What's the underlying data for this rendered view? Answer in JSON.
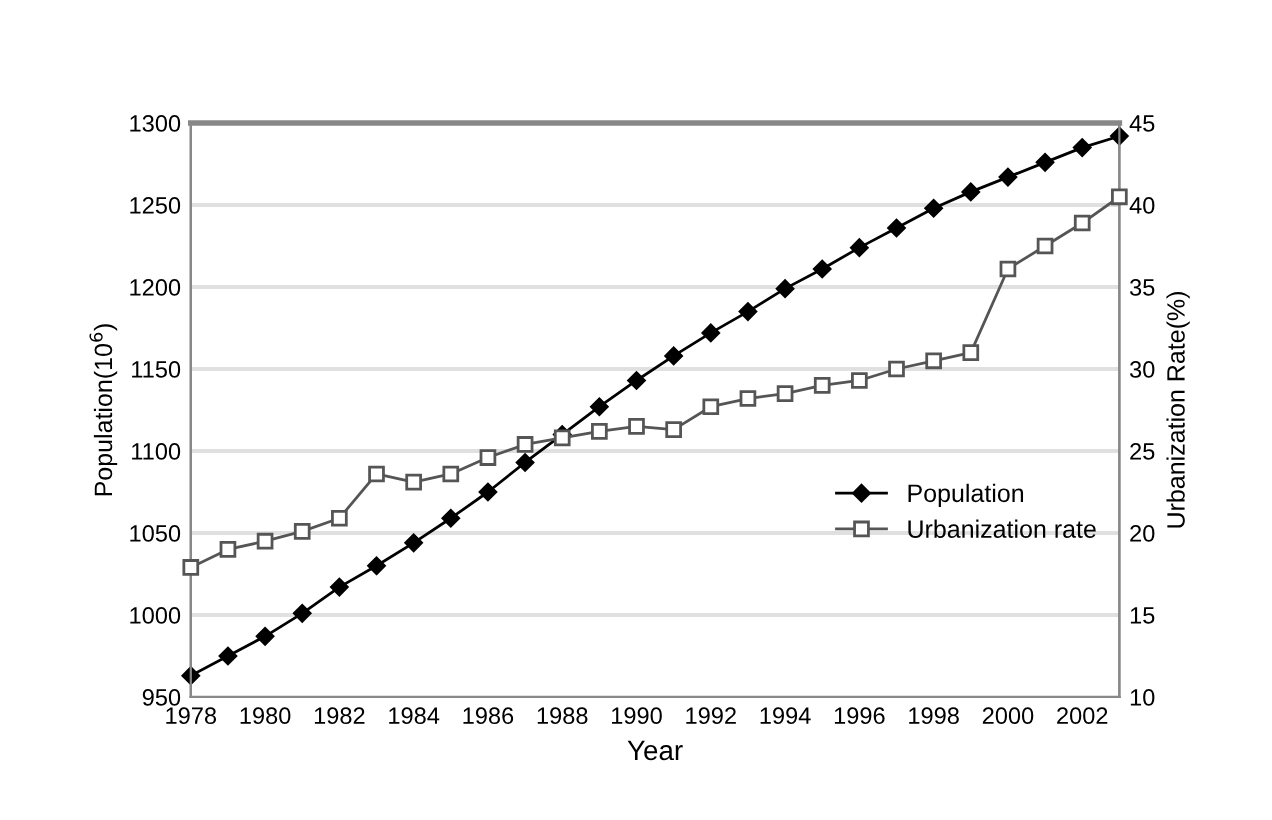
{
  "chart_data": {
    "type": "line",
    "xlabel": "Year",
    "ylabel": "Population(10$^{6}$)",
    "y2label": "Urbanization Rate(%)",
    "x": [
      1978,
      1979,
      1980,
      1981,
      1982,
      1983,
      1984,
      1985,
      1986,
      1987,
      1988,
      1989,
      1990,
      1991,
      1992,
      1993,
      1994,
      1995,
      1996,
      1997,
      1998,
      1999,
      2000,
      2001,
      2002,
      2003
    ],
    "series": [
      {
        "name": "Population",
        "color": "#000000",
        "marker": "diamond",
        "values": [
          963,
          975,
          987,
          1001,
          1017,
          1030,
          1044,
          1059,
          1075,
          1093,
          1110,
          1127,
          1143,
          1158,
          1172,
          1185,
          1199,
          1211,
          1224,
          1236,
          1248,
          1258,
          1267,
          1276,
          1285,
          1292
        ]
      },
      {
        "name": "Urbanization rate",
        "color": "#555555",
        "marker": "square",
        "axis": "y2",
        "values": [
          17.9,
          19.0,
          19.5,
          20.1,
          20.9,
          23.6,
          23.1,
          23.6,
          24.6,
          25.4,
          25.8,
          26.2,
          26.5,
          26.3,
          27.7,
          28.2,
          28.5,
          29.0,
          29.3,
          30.0,
          30.5,
          31.0,
          36.1,
          37.5,
          38.9,
          40.5
        ]
      }
    ],
    "xlim": [
      1978,
      2003
    ],
    "xticks": [
      1978,
      1980,
      1982,
      1984,
      1986,
      1988,
      1990,
      1992,
      1994,
      1996,
      1998,
      2000,
      2002
    ],
    "ylim": [
      950,
      1300
    ],
    "yticks": [
      950,
      1000,
      1050,
      1100,
      1150,
      1200,
      1250,
      1300
    ],
    "y2lim": [
      10,
      45
    ],
    "y2ticks": [
      10,
      15,
      20,
      25,
      30,
      35,
      40,
      45
    ],
    "grid": "y",
    "legend": "right"
  }
}
